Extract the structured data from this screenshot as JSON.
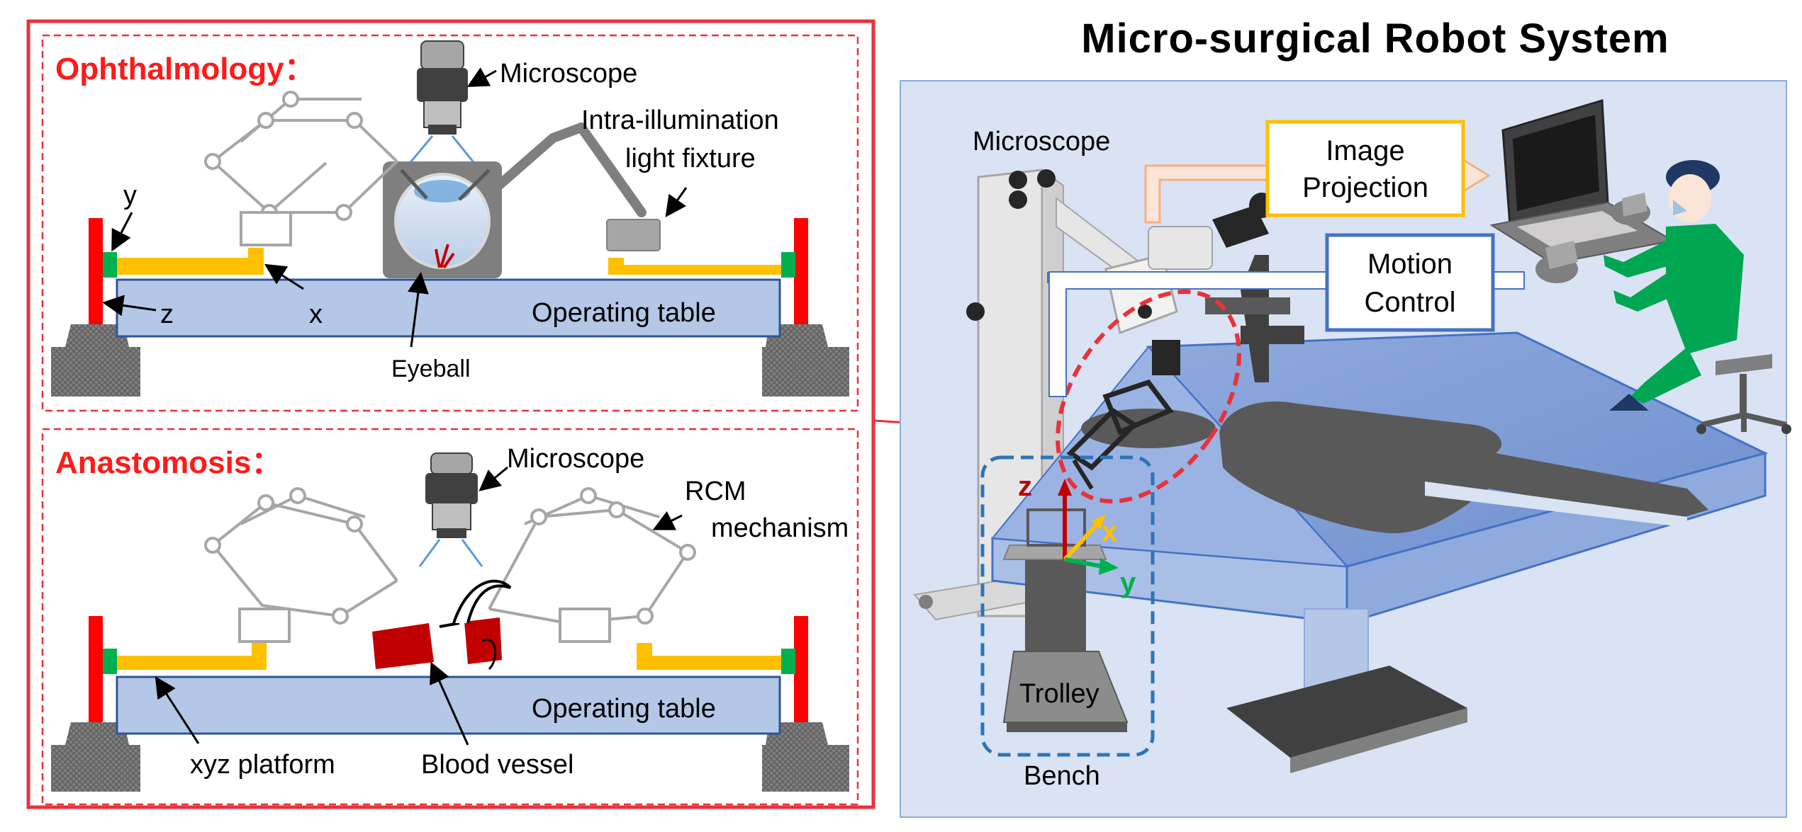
{
  "title": "Micro-surgical Robot System",
  "ophthalmology": {
    "heading": "Ophthalmology：",
    "microscope": "Microscope",
    "light_line1": "Intra-illumination",
    "light_line2": "light fixture",
    "axis_y": "y",
    "axis_z": "z",
    "axis_x": "x",
    "table": "Operating table",
    "eyeball": "Eyeball"
  },
  "anastomosis": {
    "heading": "Anastomosis：",
    "microscope": "Microscope",
    "rcm_line1": "RCM",
    "rcm_line2": "mechanism",
    "table": "Operating table",
    "platform": "xyz platform",
    "vessel": "Blood vessel"
  },
  "system": {
    "microscope": "Microscope",
    "image_line1": "Image",
    "image_line2": "Projection",
    "motion_line1": "Motion",
    "motion_line2": "Control",
    "axis_z": "z",
    "axis_x": "x",
    "axis_y": "y",
    "trolley": "Trolley",
    "bench": "Bench"
  },
  "colors": {
    "frame_red": "#e8323c",
    "heading_red": "#ff1a1a",
    "table_blue": "#b4c7e7",
    "yellow_rail": "#ffc000",
    "green_joint": "#00b050",
    "scene_bg": "#dae3f3",
    "bench_blue": "#2e75b6"
  }
}
